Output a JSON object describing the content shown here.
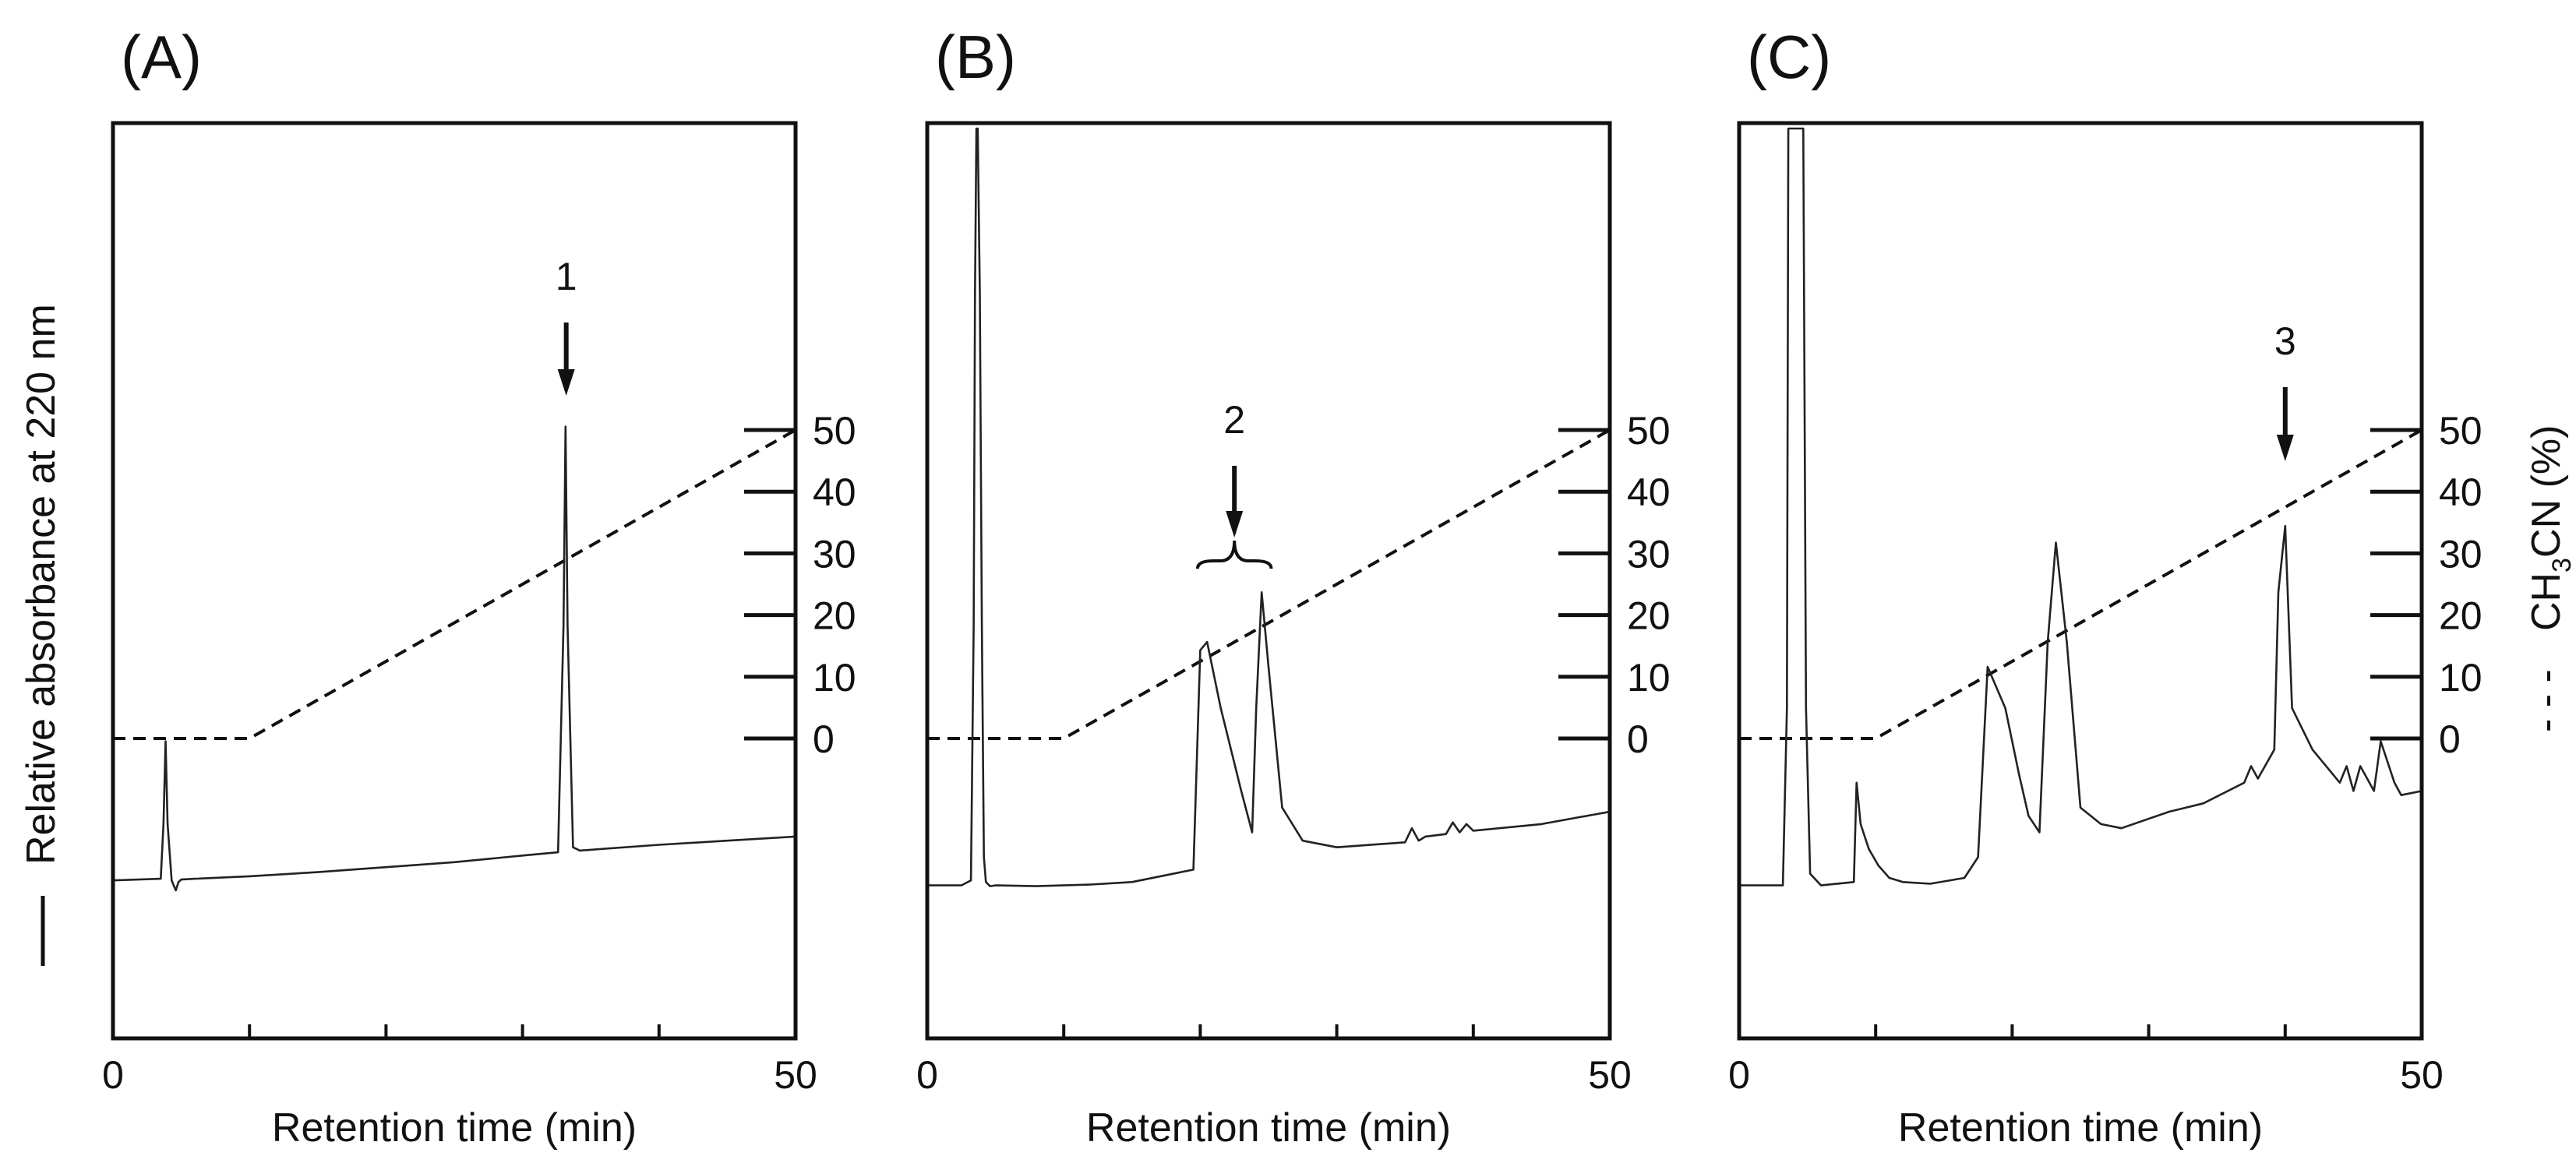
{
  "figure": {
    "y_axis_left_label": "Relative absorbance at 220 nm",
    "y_axis_right_label": "CH3CN (%)",
    "y_axis_right_label_parts": {
      "prefix": "CH",
      "subscript": "3",
      "suffix": "CN (%)"
    },
    "legend_solid_marker": "—",
    "legend_dashed_marker": "- - -"
  },
  "chart_data": [
    {
      "type": "line",
      "panel_label": "(A)",
      "title": "",
      "xlabel": "Retention time (min)",
      "ylabel": "Relative absorbance at 220 nm",
      "xlim": [
        0,
        50
      ],
      "x_tick_labels": [
        "0",
        "50"
      ],
      "x_minor_ticks": [
        10,
        20,
        30,
        40
      ],
      "right_axis": {
        "label": "CH3CN (%)",
        "ticks": [
          "0",
          "10",
          "20",
          "30",
          "40",
          "50"
        ],
        "range": [
          0,
          50
        ]
      },
      "gradient_series": {
        "name": "CH3CN (%)",
        "style": "dashed",
        "x": [
          0,
          10,
          50
        ],
        "y": [
          0,
          0,
          50
        ]
      },
      "absorbance_series": {
        "name": "Absorbance 220 nm",
        "style": "solid",
        "ylim": [
          0,
          100
        ],
        "x": [
          0,
          3.5,
          3.7,
          3.85,
          4.0,
          4.3,
          4.6,
          4.8,
          5.0,
          6,
          10,
          15,
          20,
          25,
          30,
          32.6,
          33.0,
          33.15,
          33.3,
          33.7,
          34.2,
          40,
          45,
          50
        ],
        "y": [
          9.2,
          9.4,
          16,
          26,
          16,
          9.2,
          8.0,
          9.0,
          9.3,
          9.4,
          9.7,
          10.2,
          10.8,
          11.4,
          12.2,
          12.6,
          40,
          64,
          40,
          13.2,
          12.8,
          13.5,
          14.0,
          14.5
        ]
      },
      "annotations": [
        {
          "label": "1",
          "x": 33.2,
          "arrow": true
        }
      ]
    },
    {
      "type": "line",
      "panel_label": "(B)",
      "title": "",
      "xlabel": "Retention time (min)",
      "ylabel": "",
      "xlim": [
        0,
        50
      ],
      "x_tick_labels": [
        "0",
        "50"
      ],
      "x_minor_ticks": [
        10,
        20,
        30,
        40
      ],
      "right_axis": {
        "label": "CH3CN (%)",
        "ticks": [
          "0",
          "10",
          "20",
          "30",
          "40",
          "50"
        ],
        "range": [
          0,
          50
        ]
      },
      "gradient_series": {
        "name": "CH3CN (%)",
        "style": "dashed",
        "x": [
          0,
          10,
          50
        ],
        "y": [
          0,
          0,
          50
        ]
      },
      "absorbance_series": {
        "name": "Absorbance 220 nm",
        "style": "solid",
        "ylim": [
          0,
          100
        ],
        "x": [
          0,
          2.5,
          3.2,
          3.4,
          3.5,
          3.6,
          3.7,
          3.85,
          4.0,
          4.15,
          4.3,
          4.6,
          5,
          8,
          12,
          15,
          18,
          19.5,
          20.0,
          20.5,
          21.5,
          23,
          23.8,
          24.1,
          24.5,
          25.0,
          26,
          27.5,
          30,
          35,
          35.5,
          36,
          36.5,
          38,
          38.5,
          39,
          39.5,
          40,
          45,
          50
        ],
        "y": [
          8.6,
          8.6,
          9.2,
          40,
          80,
          100,
          100,
          80,
          40,
          12,
          9.0,
          8.5,
          8.6,
          8.5,
          8.7,
          9.0,
          10.0,
          10.5,
          37,
          38,
          30,
          20,
          15,
          30,
          44,
          35,
          18,
          14,
          13.2,
          13.8,
          15.5,
          14.0,
          14.5,
          14.8,
          16.2,
          15.0,
          16.0,
          15.2,
          16.0,
          17.5
        ]
      },
      "annotations": [
        {
          "label": "2",
          "x": 22.5,
          "arrow": true,
          "bracket": [
            19.8,
            25.2
          ]
        }
      ]
    },
    {
      "type": "line",
      "panel_label": "(C)",
      "title": "",
      "xlabel": "Retention time (min)",
      "ylabel": "",
      "xlim": [
        0,
        50
      ],
      "x_tick_labels": [
        "0",
        "50"
      ],
      "x_minor_ticks": [
        10,
        20,
        30,
        40
      ],
      "right_axis": {
        "label": "CH3CN (%)",
        "ticks": [
          "0",
          "10",
          "20",
          "30",
          "40",
          "50"
        ],
        "range": [
          0,
          50
        ]
      },
      "gradient_series": {
        "name": "CH3CN (%)",
        "style": "dashed",
        "x": [
          0,
          10,
          50
        ],
        "y": [
          0,
          0,
          50
        ]
      },
      "absorbance_series": {
        "name": "Absorbance 220 nm",
        "style": "solid",
        "ylim": [
          0,
          100
        ],
        "x": [
          0,
          3.2,
          3.5,
          3.6,
          3.7,
          4.6,
          4.7,
          4.9,
          5.2,
          6,
          8.4,
          8.6,
          8.9,
          9.5,
          10.2,
          11,
          12,
          14,
          16.5,
          17.5,
          18.2,
          19.5,
          20.5,
          21.2,
          22.0,
          22.6,
          23.2,
          24.0,
          25,
          26.5,
          28,
          31.5,
          34,
          37,
          37.5,
          38,
          39.2,
          39.5,
          40.0,
          40.5,
          42,
          44,
          44.5,
          45,
          45.5,
          46.5,
          47,
          48,
          48.5,
          50
        ],
        "y": [
          8.6,
          8.6,
          30,
          100,
          100,
          100,
          100,
          30,
          10,
          8.6,
          9.0,
          21,
          16,
          13,
          11,
          9.5,
          9.0,
          8.8,
          9.5,
          12,
          35,
          30,
          22,
          17,
          15,
          38,
          50,
          38,
          18,
          16,
          15.5,
          17.5,
          18.5,
          21,
          23,
          21.5,
          25,
          44,
          52,
          30,
          25,
          21,
          23,
          20,
          23,
          20,
          26,
          21,
          19.5,
          20
        ]
      },
      "annotations": [
        {
          "label": "3",
          "x": 40.0,
          "arrow": true
        }
      ]
    }
  ]
}
